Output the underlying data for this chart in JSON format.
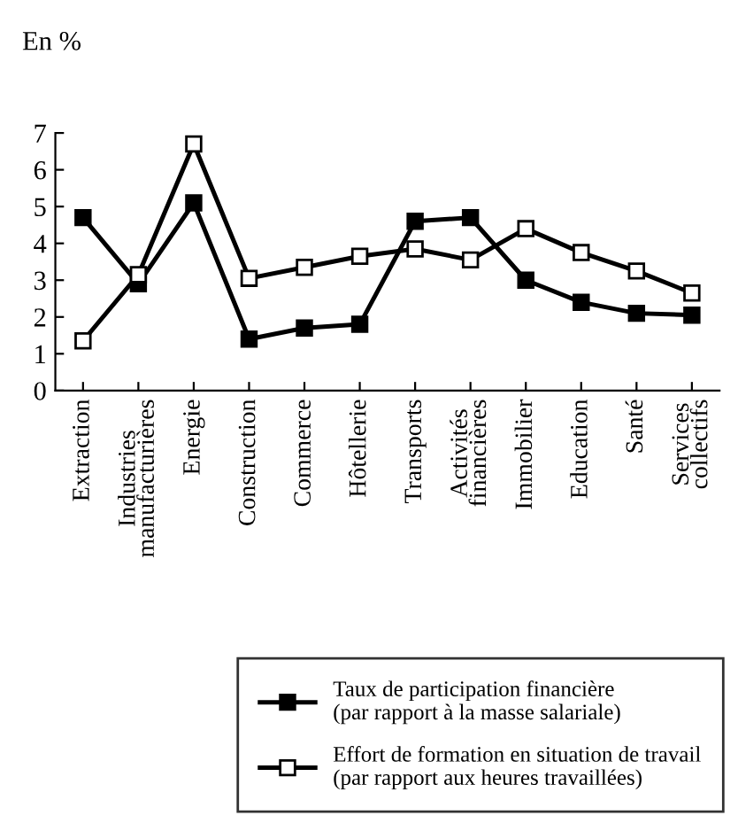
{
  "chart_data": {
    "type": "line",
    "ylabel": "En %",
    "categories": [
      "Extraction",
      "Industries\nmanufacturières",
      "Energie",
      "Construction",
      "Commerce",
      "Hôtellerie",
      "Transports",
      "Activités\nfinancières",
      "Immobilier",
      "Education",
      "Santé",
      "Services\ncollectifs"
    ],
    "series": [
      {
        "name": "Taux de participation financière\n(par rapport à la masse salariale)",
        "color": "#000000",
        "marker": "square",
        "values": [
          4.7,
          2.9,
          5.1,
          1.4,
          1.7,
          1.8,
          4.6,
          4.7,
          3.0,
          2.4,
          2.1,
          2.05
        ]
      },
      {
        "name": "Effort de formation en situation de travail\n(par rapport aux heures travaillées)",
        "color": "#000000",
        "marker": "square",
        "values": [
          1.35,
          3.15,
          6.7,
          3.05,
          3.35,
          3.65,
          3.85,
          3.55,
          4.4,
          3.75,
          3.25,
          2.65
        ]
      }
    ],
    "ylim": [
      0,
      7
    ],
    "yticks": [
      0,
      1,
      2,
      3,
      4,
      5,
      6,
      7
    ],
    "grid": false,
    "legend": "bottom",
    "line_style": "solid"
  }
}
